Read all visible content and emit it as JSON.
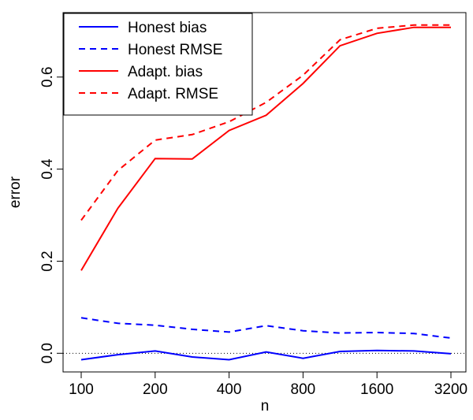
{
  "chart_data": {
    "type": "line",
    "title": "",
    "xlabel": "n",
    "ylabel": "error",
    "x_scale": "log",
    "x": [
      100,
      141,
      200,
      283,
      400,
      566,
      800,
      1131,
      1600,
      2263,
      3200
    ],
    "xticks": [
      100,
      200,
      400,
      800,
      1600,
      3200
    ],
    "xtick_labels": [
      "100",
      "200",
      "400",
      "800",
      "1600",
      "3200"
    ],
    "yticks": [
      0.0,
      0.2,
      0.4,
      0.6
    ],
    "ytick_labels": [
      "0.0",
      "0.2",
      "0.4",
      "0.6"
    ],
    "ylim": [
      -0.02,
      0.74
    ],
    "reference_line": {
      "y": 0,
      "style": "dotted",
      "color": "#000000"
    },
    "grid": false,
    "legend_position": "top-left",
    "series": [
      {
        "name": "Honest bias",
        "color": "#0000ff",
        "line_style": "solid",
        "values": [
          -0.014,
          -0.003,
          0.005,
          -0.008,
          -0.014,
          0.003,
          -0.011,
          0.004,
          0.006,
          0.005,
          -0.001
        ]
      },
      {
        "name": "Honest RMSE",
        "color": "#0000ff",
        "line_style": "dashed",
        "values": [
          0.077,
          0.065,
          0.061,
          0.052,
          0.046,
          0.06,
          0.049,
          0.044,
          0.045,
          0.043,
          0.033
        ]
      },
      {
        "name": "Adapt. bias",
        "color": "#ff0000",
        "line_style": "solid",
        "values": [
          0.18,
          0.315,
          0.423,
          0.422,
          0.484,
          0.517,
          0.586,
          0.668,
          0.695,
          0.708,
          0.708
        ]
      },
      {
        "name": "Adapt. RMSE",
        "color": "#ff0000",
        "line_style": "dashed",
        "values": [
          0.289,
          0.397,
          0.463,
          0.475,
          0.503,
          0.545,
          0.604,
          0.681,
          0.706,
          0.713,
          0.713
        ]
      }
    ]
  }
}
